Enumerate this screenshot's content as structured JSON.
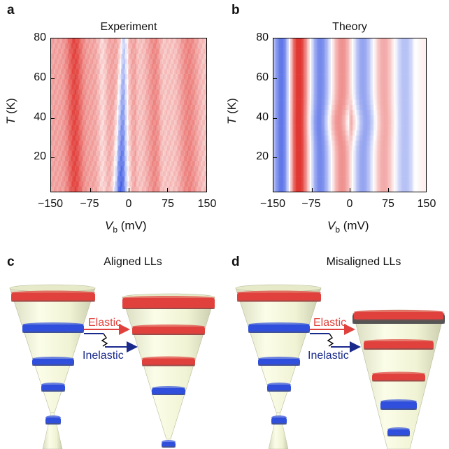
{
  "panels": {
    "a": {
      "letter": "a",
      "title": "Experiment"
    },
    "b": {
      "letter": "b",
      "title": "Theory"
    },
    "c": {
      "letter": "c",
      "title": "Aligned LLs"
    },
    "d": {
      "letter": "d",
      "title": "Misaligned LLs"
    }
  },
  "axes": {
    "ylabel_main": "T",
    "ylabel_unit": " (K)",
    "xlabel_main": "V",
    "xlabel_sub": "b",
    "xlabel_unit": " (mV)",
    "yticks": [
      "80",
      "60",
      "40",
      "20"
    ],
    "xticks": [
      "−150",
      "−75",
      "0",
      "75",
      "150"
    ]
  },
  "annotations": {
    "elastic": "Elastic",
    "inelastic": "Inelastic"
  },
  "colors": {
    "red": "#e0413c",
    "blue": "#2f4fdc",
    "elastic_arrow": "#e0413c",
    "inelastic_arrow": "#1a2a8c",
    "cone": "#f4f7dc"
  },
  "chart_data": [
    {
      "type": "heatmap",
      "title": "Experiment",
      "xlabel": "Vb (mV)",
      "ylabel": "T (K)",
      "xlim": [
        -150,
        150
      ],
      "ylim": [
        3,
        80
      ],
      "xticks": [
        -150,
        -75,
        0,
        75,
        150
      ],
      "yticks": [
        20,
        40,
        60,
        80
      ],
      "colormap": "blue-white-red"
    },
    {
      "type": "heatmap",
      "title": "Theory",
      "xlabel": "Vb (mV)",
      "ylabel": "T (K)",
      "xlim": [
        -150,
        150
      ],
      "ylim": [
        3,
        80
      ],
      "xticks": [
        -150,
        -75,
        0,
        75,
        150
      ],
      "yticks": [
        20,
        40,
        60,
        80
      ],
      "colormap": "blue-white-red"
    }
  ]
}
